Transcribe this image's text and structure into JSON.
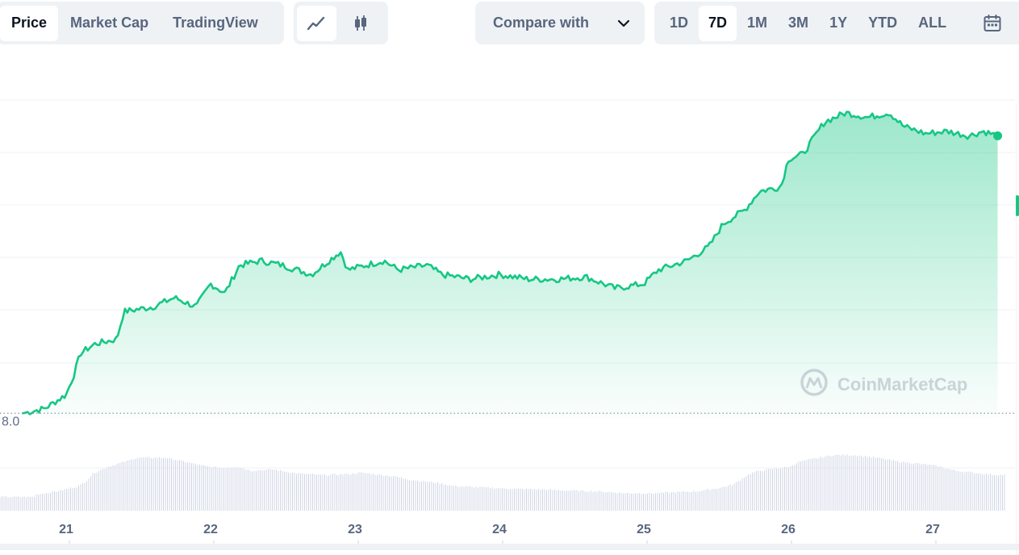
{
  "toolbar": {
    "type_tabs": [
      "Price",
      "Market Cap",
      "TradingView"
    ],
    "active_type": "Price",
    "chart_styles": [
      "line-chart-icon",
      "candlestick-icon"
    ],
    "active_style": "line-chart-icon",
    "compare_label": "Compare with",
    "ranges": [
      "1D",
      "7D",
      "1M",
      "3M",
      "1Y",
      "YTD",
      "ALL"
    ],
    "active_range": "7D",
    "calendar_icon": "calendar-icon"
  },
  "watermark": "CoinMarketCap",
  "colors": {
    "line": "#16c784",
    "volume": "#cfd6e4",
    "grid": "#eff2f5"
  },
  "chart_data": {
    "type": "area",
    "x_ticks": [
      "21",
      "22",
      "23",
      "24",
      "25",
      "26",
      "27"
    ],
    "y_tick_visible": "8.0",
    "y_baseline_value": 8.0,
    "grid": true,
    "x": [
      20.7,
      20.85,
      21.0,
      21.05,
      21.1,
      21.2,
      21.35,
      21.4,
      21.6,
      21.75,
      21.9,
      22.0,
      22.1,
      22.2,
      22.35,
      22.5,
      22.7,
      22.9,
      22.95,
      23.2,
      23.3,
      23.5,
      23.6,
      23.8,
      24.0,
      24.2,
      24.4,
      24.6,
      24.8,
      25.0,
      25.1,
      25.3,
      25.45,
      25.55,
      25.65,
      25.7,
      25.8,
      25.95,
      26.0,
      26.1,
      26.25,
      26.4,
      26.55,
      26.7,
      26.8,
      26.95,
      27.1,
      27.25,
      27.35,
      27.45
    ],
    "price": [
      8.0,
      8.1,
      8.4,
      8.8,
      9.3,
      9.5,
      9.6,
      10.2,
      10.3,
      10.5,
      10.3,
      10.8,
      10.6,
      11.2,
      11.3,
      11.2,
      11.0,
      11.5,
      11.1,
      11.3,
      11.1,
      11.2,
      11.0,
      10.9,
      11.0,
      10.9,
      10.9,
      10.95,
      10.7,
      10.8,
      11.1,
      11.3,
      11.6,
      12.1,
      12.3,
      12.4,
      12.8,
      12.9,
      13.5,
      13.6,
      14.3,
      14.5,
      14.4,
      14.5,
      14.2,
      14.05,
      14.1,
      14.0,
      14.1,
      14.0
    ],
    "volume": [
      2.5,
      3.0,
      3.8,
      4.6,
      5.8,
      6.8,
      7.8,
      8.2,
      8.2,
      7.5,
      6.8,
      6.6,
      6.8,
      6.2,
      6.4,
      5.8,
      5.5,
      5.7,
      5.9,
      5.3,
      4.8,
      4.3,
      3.8,
      3.6,
      3.4,
      3.3,
      3.1,
      3.0,
      2.7,
      2.7,
      2.8,
      3.0,
      3.5,
      4.0,
      5.5,
      6.0,
      6.4,
      6.8,
      7.5,
      8.0,
      8.6,
      8.6,
      8.2,
      7.6,
      7.4,
      7.0,
      6.2,
      5.8,
      5.6,
      5.5
    ]
  }
}
